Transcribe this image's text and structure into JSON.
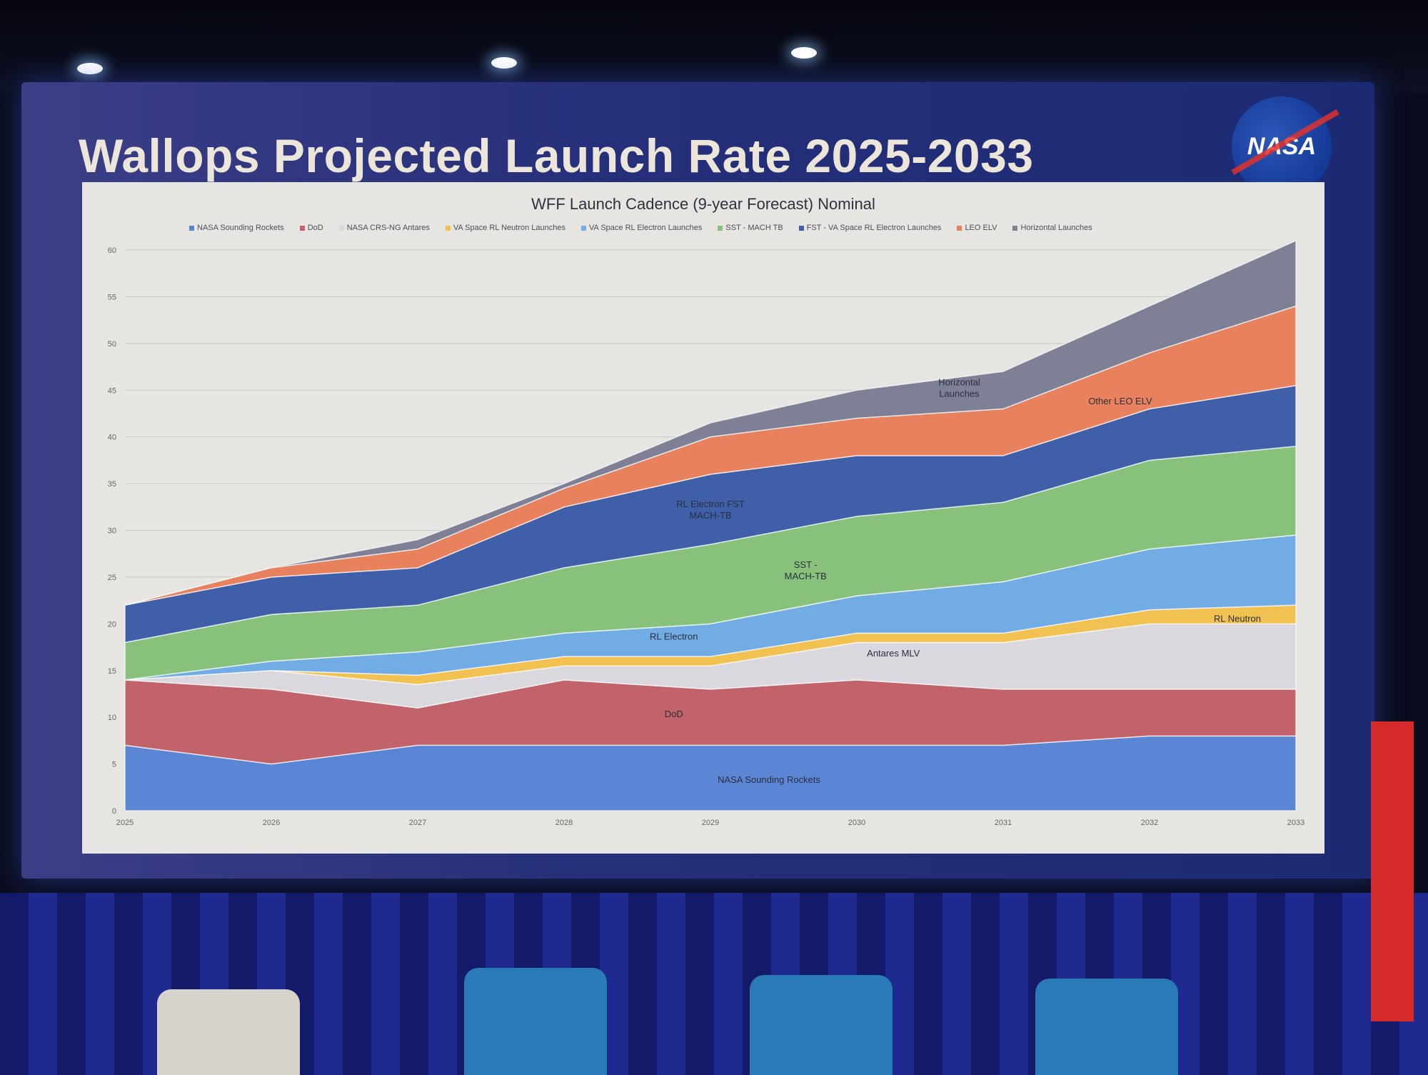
{
  "slide": {
    "title": "Wallops Projected Launch Rate 2025-2033",
    "logo_text": "NASA"
  },
  "chart_data": {
    "type": "area",
    "stacked": true,
    "title": "WFF Launch Cadence (9-year Forecast) Nominal",
    "xlabel": "",
    "ylabel": "",
    "x": [
      2025,
      2026,
      2027,
      2028,
      2029,
      2030,
      2031,
      2032,
      2033
    ],
    "ylim": [
      0,
      60
    ],
    "yticks": [
      0,
      5,
      10,
      15,
      20,
      25,
      30,
      35,
      40,
      45,
      50,
      55,
      60
    ],
    "grid": true,
    "legend_position": "top",
    "series": [
      {
        "name": "NASA Sounding Rockets",
        "color": "#5b86d6",
        "values": [
          7,
          5,
          7,
          7,
          7,
          7,
          7,
          8,
          8
        ]
      },
      {
        "name": "DoD",
        "color": "#c2636c",
        "values": [
          7,
          8,
          4,
          7,
          6,
          7,
          6,
          5,
          5
        ]
      },
      {
        "name": "NASA CRS-NG Antares",
        "color": "#dad7de",
        "values": [
          0,
          2,
          2.5,
          1.5,
          2.5,
          4,
          5,
          7,
          7
        ]
      },
      {
        "name": "VA Space RL Neutron Launches",
        "color": "#f1c152",
        "values": [
          0,
          0,
          1,
          1,
          1,
          1,
          1,
          1.5,
          2
        ]
      },
      {
        "name": "VA Space RL Electron Launches",
        "color": "#72ace4",
        "values": [
          0,
          1,
          2.5,
          2.5,
          3.5,
          4,
          5.5,
          6.5,
          7.5
        ]
      },
      {
        "name": "SST - MACH TB",
        "color": "#87c17c",
        "values": [
          4,
          5,
          5,
          7,
          8.5,
          8.5,
          8.5,
          9.5,
          9.5
        ]
      },
      {
        "name": "FST - VA Space RL Electron Launches",
        "color": "#3f5fa8",
        "values": [
          4,
          4,
          4,
          6.5,
          7.5,
          6.5,
          5,
          5.5,
          6.5
        ]
      },
      {
        "name": "LEO ELV",
        "color": "#e8815e",
        "values": [
          0,
          1,
          2,
          2,
          4,
          4,
          5,
          6,
          8.5
        ]
      },
      {
        "name": "Horizontal Launches",
        "color": "#7e8196",
        "values": [
          0,
          0,
          1,
          0.5,
          1.5,
          3,
          4,
          5,
          7
        ]
      }
    ],
    "annotations": [
      {
        "text": "NASA Sounding Rockets",
        "x": 2029.4,
        "y": 3
      },
      {
        "text": "DoD",
        "x": 2028.75,
        "y": 10
      },
      {
        "text": "Antares MLV",
        "x": 2030.25,
        "y": 16.5
      },
      {
        "text": "RL Neutron",
        "x": 2032.6,
        "y": 20.2
      },
      {
        "text": "RL Electron",
        "x": 2028.75,
        "y": 18.3
      },
      {
        "text": "SST -\nMACH-TB",
        "x": 2029.65,
        "y": 26
      },
      {
        "text": "RL Electron FST\nMACH-TB",
        "x": 2029,
        "y": 32.5
      },
      {
        "text": "Horizontal\nLaunches",
        "x": 2030.7,
        "y": 45.5
      },
      {
        "text": "Other LEO ELV",
        "x": 2031.8,
        "y": 43.5
      }
    ]
  }
}
